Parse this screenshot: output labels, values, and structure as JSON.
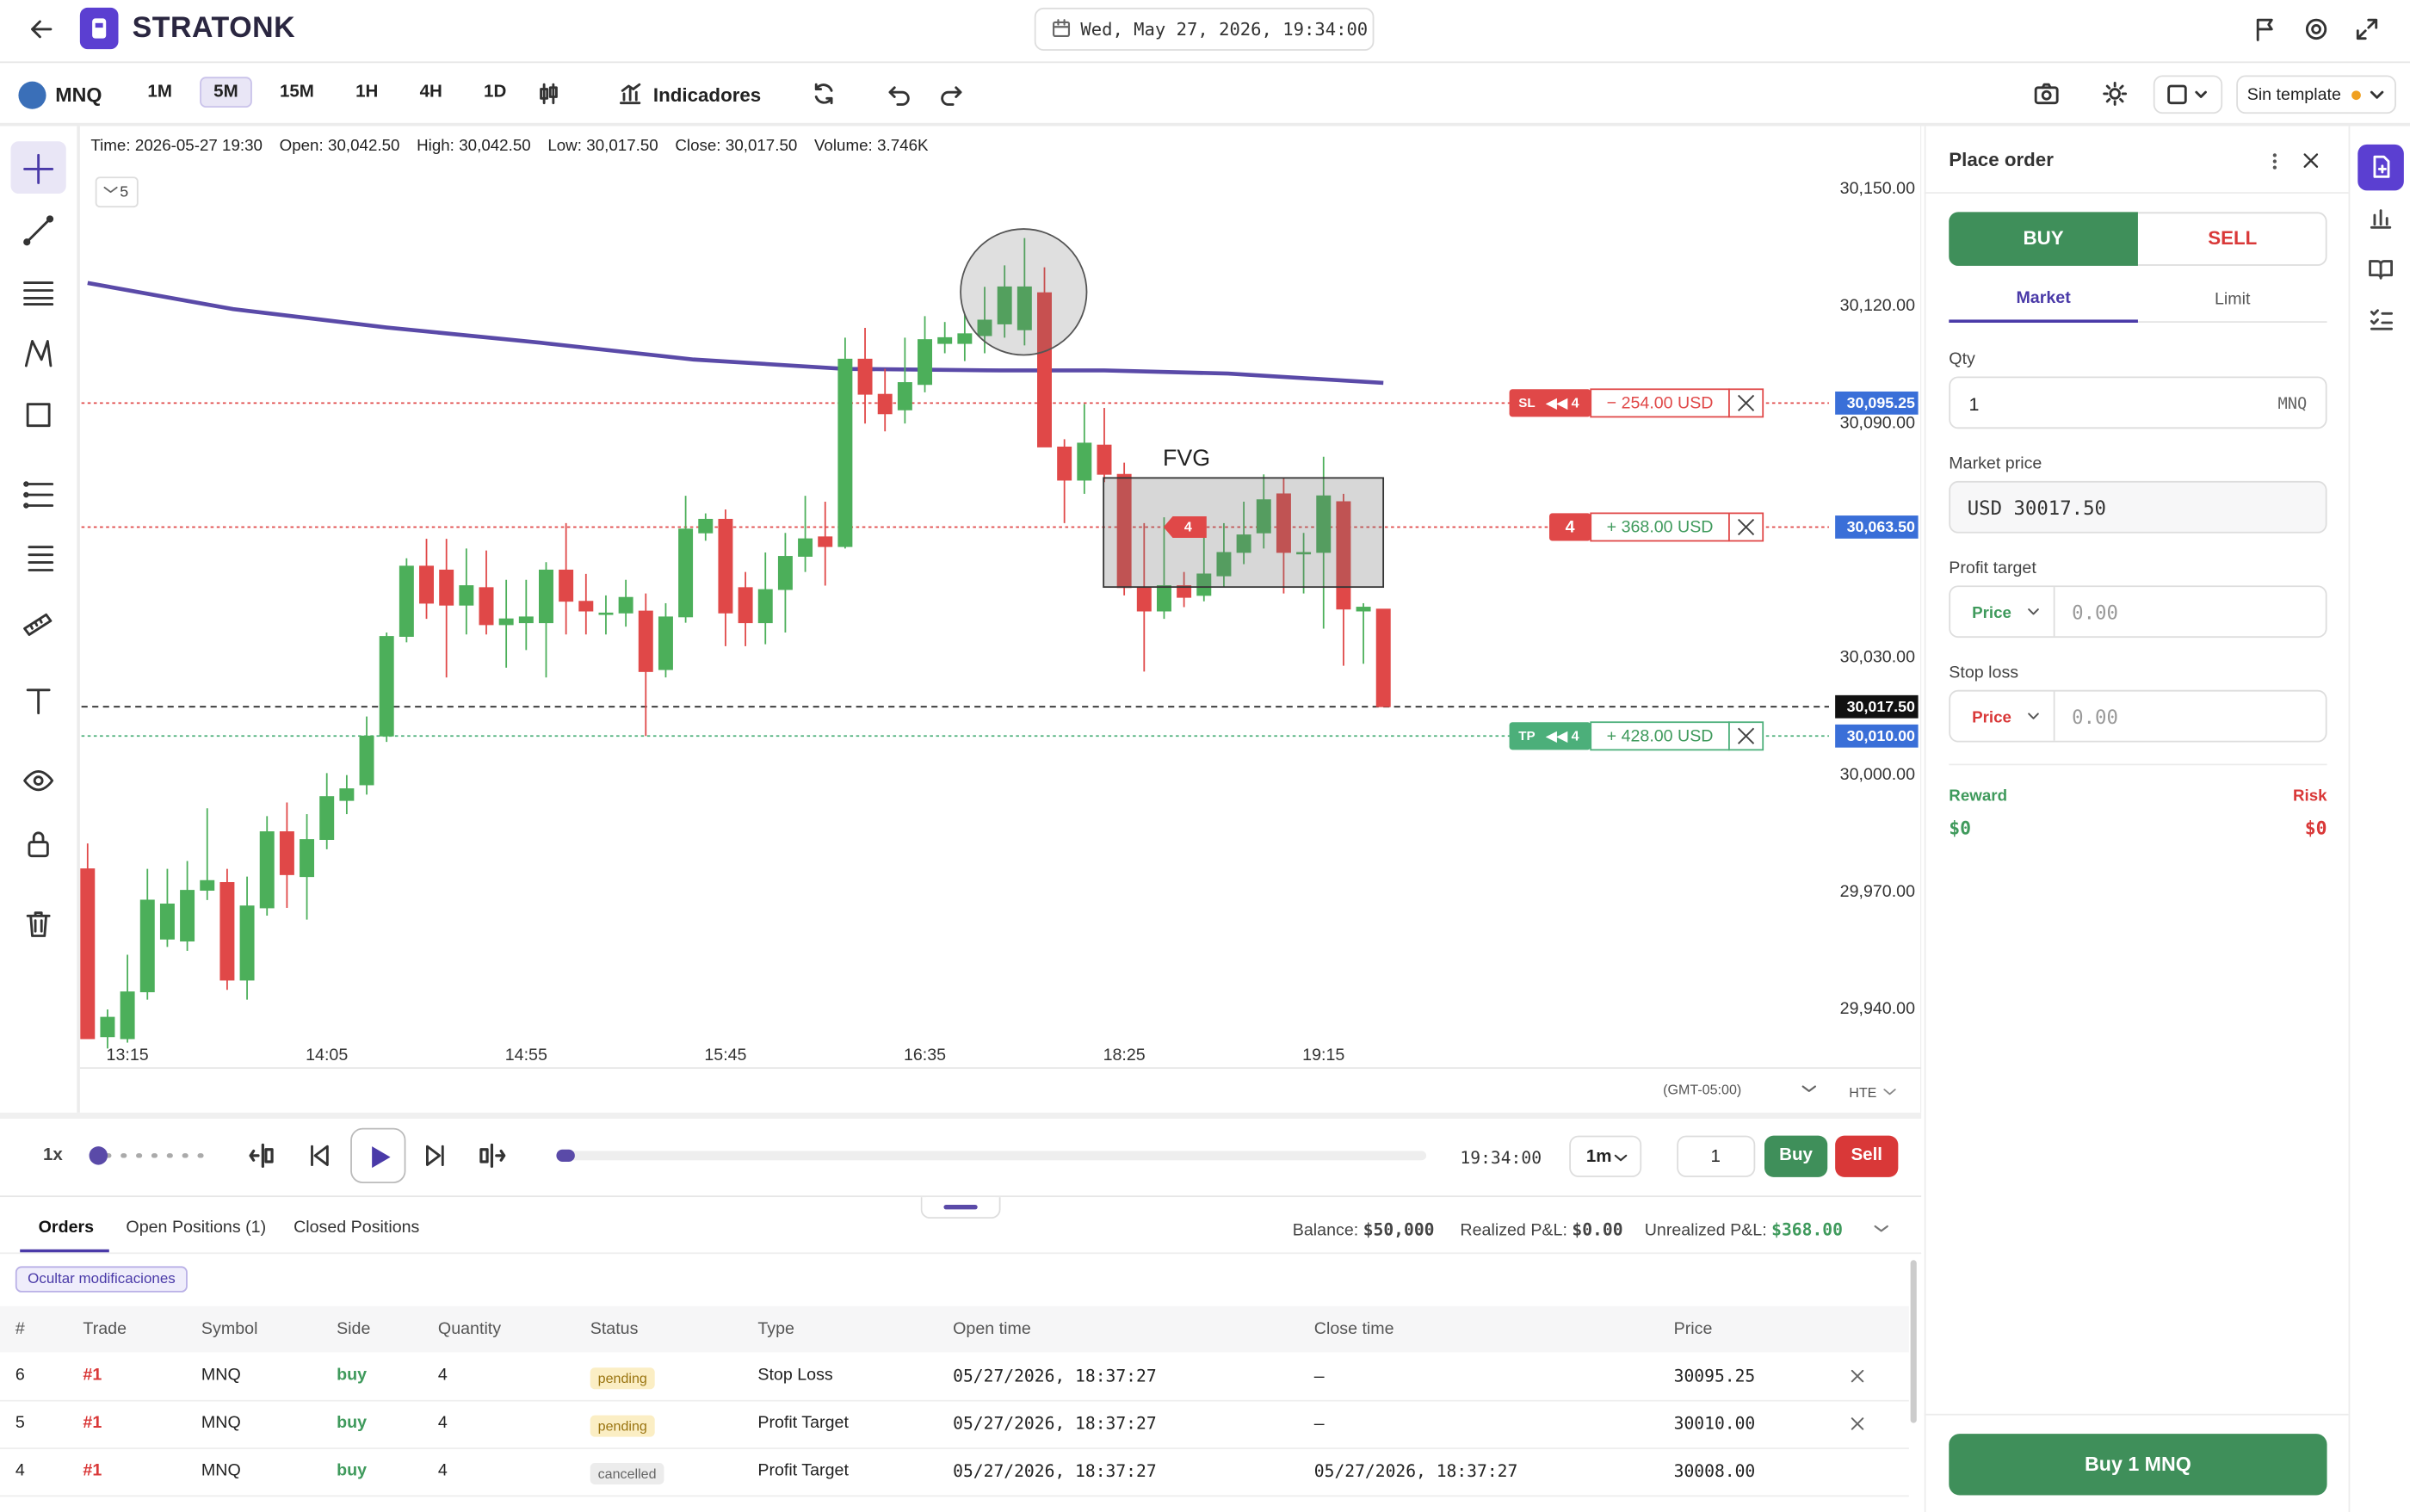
{
  "header": {
    "logo": "STRATONK",
    "datetime": "Wed, May 27, 2026, 19:34:00"
  },
  "toolbar": {
    "symbol": "MNQ",
    "timeframes": [
      "1M",
      "5M",
      "15M",
      "1H",
      "4H",
      "1D"
    ],
    "active_timeframe": 1,
    "indicators": "Indicadores",
    "template": "Sin template"
  },
  "chart_data": {
    "type": "candlestick",
    "info": [
      {
        "label": "Time:",
        "value": "2026-05-27 19:30"
      },
      {
        "label": "Open:",
        "value": "30,042.50"
      },
      {
        "label": "High:",
        "value": "30,042.50"
      },
      {
        "label": "Low:",
        "value": "30,017.50"
      },
      {
        "label": "Close:",
        "value": "30,017.50"
      },
      {
        "label": "Volume:",
        "value": "3.746K"
      }
    ],
    "indicator_count": 5,
    "categories": [
      null,
      null,
      "13:15",
      null,
      null,
      null,
      null,
      null,
      null,
      null,
      null,
      null,
      "14:05",
      null,
      null,
      null,
      null,
      null,
      null,
      null,
      null,
      null,
      "14:55",
      null,
      null,
      null,
      null,
      null,
      null,
      null,
      null,
      null,
      "15:45",
      null,
      null,
      null,
      null,
      null,
      null,
      null,
      null,
      null,
      "16:35",
      null,
      null,
      null,
      null,
      null,
      null,
      null,
      null,
      null,
      "18:25",
      null,
      null,
      null,
      null,
      null,
      null,
      null,
      null,
      null,
      "19:15",
      null,
      null,
      null
    ],
    "open": [
      29976,
      29933,
      29932.5,
      29944.5,
      29958,
      29957.5,
      29970.5,
      29972.5,
      29947.5,
      29966,
      29985.5,
      29974,
      29983.5,
      29993.5,
      29997.5,
      30010,
      30035.5,
      30053.5,
      30052.5,
      30043.5,
      30048,
      30038.5,
      30039,
      30039,
      30052.5,
      30044.5,
      30041.5,
      30041.5,
      30042,
      30027,
      30040.5,
      30062,
      30065.5,
      30048,
      30039,
      30047.5,
      30056,
      30061,
      30058.5,
      30106.5,
      30097.5,
      30093.5,
      30100,
      30110.5,
      30110.5,
      30112.5,
      30115.5,
      30114,
      30123.5,
      30084,
      30075.5,
      30084.5,
      30077,
      30048,
      30042,
      30048.5,
      30046,
      30051,
      30057,
      30062,
      30072,
      30057,
      30057,
      30070,
      30042,
      30042.5
    ],
    "high": [
      29982.5,
      29940,
      29954,
      29976,
      29976,
      29978,
      29991.5,
      29976,
      29974,
      29989.5,
      29993,
      29990,
      30000.5,
      30000,
      30015,
      30036.5,
      30055.5,
      30060.5,
      30060.5,
      30058,
      30057.5,
      30050,
      30050,
      30054.5,
      30064.5,
      30051.5,
      30046,
      30050,
      30046.5,
      30044,
      30071.5,
      30067,
      30068,
      30052,
      30057,
      30062,
      30071.5,
      30070,
      30112,
      30114.5,
      30104,
      30112,
      30117.5,
      30116,
      30118,
      30125,
      30130.5,
      30137.5,
      30130,
      30086,
      30095,
      30094,
      30080,
      30064.5,
      30066,
      30052,
      30062,
      30064.5,
      30070,
      30077,
      30076,
      30062,
      30081.5,
      30072,
      30044,
      30042.5
    ],
    "low": [
      29932.5,
      29930,
      29931.5,
      29942.5,
      29956,
      29955,
      29968,
      29945,
      29942.5,
      29964,
      29966,
      29963,
      29981,
      29990,
      29995,
      30008.5,
      30034,
      30040,
      30025,
      30036,
      30036,
      30027.5,
      30032,
      30025,
      30036,
      30036,
      30036,
      30038,
      30010,
      30025,
      30039,
      30060,
      30033,
      30033,
      30033.5,
      30036.5,
      30052,
      30048.5,
      30058,
      30090,
      30088,
      30090,
      30098,
      30108,
      30106,
      30108,
      30112,
      30110,
      30084,
      30064.5,
      30072,
      30075,
      30046,
      30026.5,
      30040,
      30043,
      30044.5,
      30048,
      30054,
      30058,
      30046.5,
      30046.5,
      30037.5,
      30028,
      30028.5,
      30017.5
    ],
    "close": [
      29932.5,
      29938,
      29944.5,
      29968,
      29967,
      29970.5,
      29973,
      29947.5,
      29966.5,
      29985.5,
      29974.5,
      29983.5,
      29994.5,
      29996.5,
      30010,
      30035.5,
      30053.5,
      30044,
      30043.5,
      30048.5,
      30038.5,
      30040,
      30040.5,
      30052.5,
      30044.5,
      30042,
      30041.5,
      30045.5,
      30026.5,
      30040.5,
      30063,
      30065.5,
      30041.5,
      30039,
      30047.5,
      30056,
      30060.5,
      30058.5,
      30106.5,
      30097.5,
      30092.5,
      30100.5,
      30111.5,
      30112,
      30113,
      30116.5,
      30125,
      30125,
      30084,
      30075.5,
      30085,
      30077,
      30048,
      30042,
      30048.5,
      30045.5,
      30051.5,
      30057,
      30061.5,
      30070.5,
      30057,
      30057,
      30071.5,
      30042.5,
      30043,
      30017.5
    ],
    "up_color": "#4caf5a",
    "down_color": "#e04848",
    "ma": {
      "color": "#5a4aa8",
      "x": [
        0,
        7.3,
        15,
        22.7,
        30.4,
        38,
        45.8,
        51,
        57.2,
        65
      ],
      "values": [
        30126,
        30119.3,
        30114.6,
        30110.7,
        30106.4,
        30104,
        30103.6,
        30103.6,
        30102.8,
        30100.4
      ]
    },
    "ylim": [
      29925,
      30165
    ],
    "yticks": [
      {
        "value": 30150,
        "label": "30,150.00"
      },
      {
        "value": 30120,
        "label": "30,120.00"
      },
      {
        "value": 30090,
        "label": "30,090.00"
      },
      {
        "value": 30030,
        "label": "30,030.00"
      },
      {
        "value": 30000,
        "label": "30,000.00"
      },
      {
        "value": 29970,
        "label": "29,970.00"
      },
      {
        "value": 29940,
        "label": "29,940.00"
      }
    ],
    "levels": [
      {
        "tag": "SL",
        "qty": "◀◀ 4",
        "pnl": "− 254.00 USD",
        "pnl_color": "#e04848",
        "color": "#e04848",
        "price": {
          "value": 30095.25,
          "label": "30,095.25"
        }
      },
      {
        "tag": "4",
        "pnl": "+ 368.00 USD",
        "pnl_color": "#3f9a5c",
        "color": "#e04848",
        "price": {
          "value": 30063.5,
          "label": "30,063.50"
        }
      },
      {
        "tag": "TP",
        "qty": "◀◀ 4",
        "pnl": "+ 428.00 USD",
        "pnl_color": "#3f9a5c",
        "color": "#4caf7a",
        "price": {
          "value": 30010,
          "label": "30,010.00"
        }
      }
    ],
    "last_price": {
      "value": 30017.5,
      "label": "30,017.50"
    },
    "fvg_label": "FVG"
  },
  "chart_footer": {
    "timezone": "(GMT-05:00)",
    "session": "HTE"
  },
  "playback": {
    "speed": "1x",
    "time": "19:34:00",
    "interval": "1m",
    "qty": "1",
    "buy": "Buy",
    "sell": "Sell"
  },
  "positions": {
    "tabs": [
      "Orders",
      "Open Positions (1)",
      "Closed Positions"
    ],
    "active_tab": 0,
    "balance": {
      "label": "Balance:",
      "value": "$50,000"
    },
    "realized": {
      "label": "Realized P&L:",
      "value": "$0.00"
    },
    "unrealized": {
      "label": "Unrealized P&L:",
      "value": "$368.00"
    },
    "filter": "Ocultar modificaciones",
    "table": {
      "columns": [
        "#",
        "Trade",
        "Symbol",
        "Side",
        "Quantity",
        "Status",
        "Type",
        "Open time",
        "Close time",
        "Price"
      ],
      "rows": [
        [
          "6",
          "#1",
          "MNQ",
          "buy",
          "4",
          "pending",
          "Stop Loss",
          "05/27/2026, 18:37:27",
          "—",
          "30095.25"
        ],
        [
          "5",
          "#1",
          "MNQ",
          "buy",
          "4",
          "pending",
          "Profit Target",
          "05/27/2026, 18:37:27",
          "—",
          "30010.00"
        ],
        [
          "4",
          "#1",
          "MNQ",
          "buy",
          "4",
          "cancelled",
          "Profit Target",
          "05/27/2026, 18:37:27",
          "05/27/2026, 18:37:27",
          "30008.00"
        ]
      ]
    }
  },
  "order": {
    "title": "Place order",
    "buy": "BUY",
    "sell": "SELL",
    "tabs": [
      "Market",
      "Limit"
    ],
    "qty_label": "Qty",
    "qty": "1",
    "qty_unit": "MNQ",
    "market_price_label": "Market price",
    "market_price": "USD 30017.50",
    "profit_label": "Profit target",
    "profit_mode": "Price",
    "profit_placeholder": "0.00",
    "stop_label": "Stop loss",
    "stop_mode": "Price",
    "stop_placeholder": "0.00",
    "reward_label": "Reward",
    "reward": "$0",
    "risk_label": "Risk",
    "risk": "$0",
    "submit": "Buy 1 MNQ"
  }
}
